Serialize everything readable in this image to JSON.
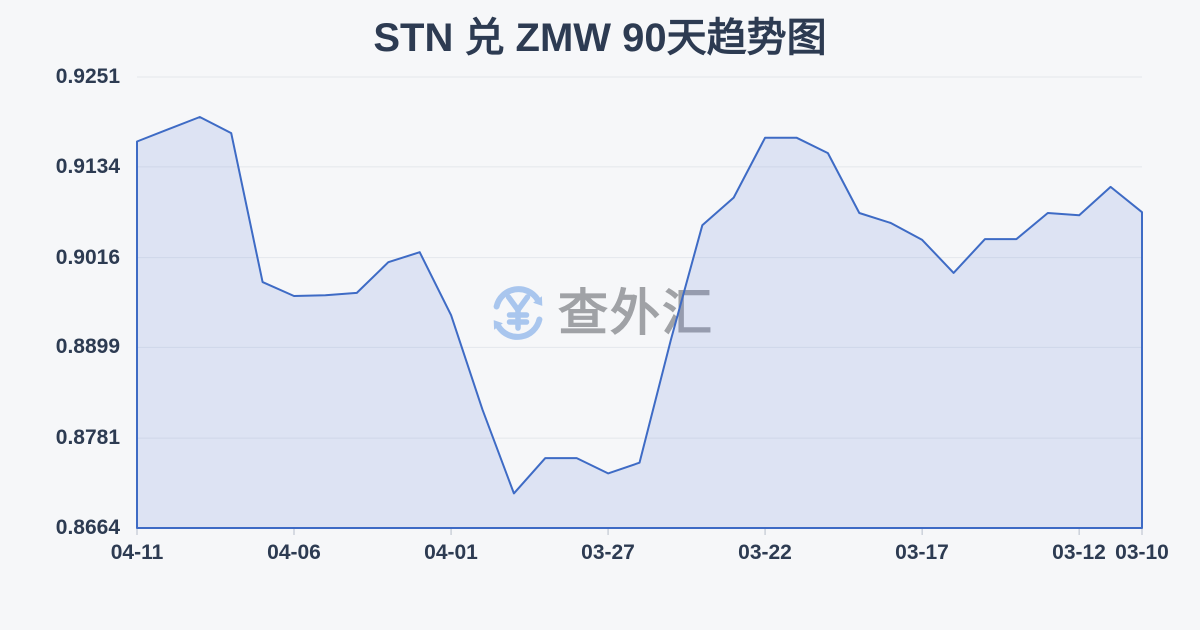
{
  "page": {
    "background_color": "#f6f7f9"
  },
  "watermark": {
    "text": "查外汇",
    "icon": "currency-exchange-icon",
    "icon_color": "#a9c6ee",
    "text_color": "#a0a2a6"
  },
  "chart_data": {
    "type": "area",
    "title": "STN 兑 ZMW 90天趋势图",
    "x": [
      "04-11",
      "04-10",
      "04-09",
      "04-08",
      "04-07",
      "04-06",
      "04-05",
      "04-04",
      "04-03",
      "04-02",
      "04-01",
      "03-31",
      "03-30",
      "03-29",
      "03-28",
      "03-27",
      "03-26",
      "03-25",
      "03-24",
      "03-23",
      "03-22",
      "03-21",
      "03-20",
      "03-19",
      "03-18",
      "03-17",
      "03-16",
      "03-15",
      "03-14",
      "03-13",
      "03-12",
      "03-11",
      "03-10"
    ],
    "values": [
      0.9167,
      0.9183,
      0.9199,
      0.9178,
      0.8984,
      0.8966,
      0.8967,
      0.897,
      0.901,
      0.9023,
      0.8941,
      0.8818,
      0.8709,
      0.8755,
      0.8755,
      0.8735,
      0.8749,
      0.8909,
      0.9058,
      0.9094,
      0.9172,
      0.9172,
      0.9152,
      0.9074,
      0.9061,
      0.9039,
      0.8996,
      0.904,
      0.904,
      0.9074,
      0.9071,
      0.9108,
      0.9075
    ],
    "y_ticks": [
      "0.9251",
      "0.9134",
      "0.9016",
      "0.8899",
      "0.8781",
      "0.8664"
    ],
    "x_ticks": [
      {
        "label": "04-11",
        "index": 0
      },
      {
        "label": "04-06",
        "index": 5
      },
      {
        "label": "04-01",
        "index": 10
      },
      {
        "label": "03-27",
        "index": 15
      },
      {
        "label": "03-22",
        "index": 20
      },
      {
        "label": "03-17",
        "index": 25
      },
      {
        "label": "03-12",
        "index": 30
      },
      {
        "label": "03-10",
        "index": 32
      }
    ],
    "ylim": [
      0.8664,
      0.9251
    ],
    "x_direction": "dates descend left to right (newest on left)",
    "grid": true,
    "legend": "none",
    "colors": {
      "line": "#3e6bc5",
      "fill": "rgba(98,130,213,0.17)",
      "grid": "#e4e7ec",
      "tick": "#ccd1da",
      "axis_text": "#2d3b52",
      "title_text": "#2d3b52"
    }
  }
}
